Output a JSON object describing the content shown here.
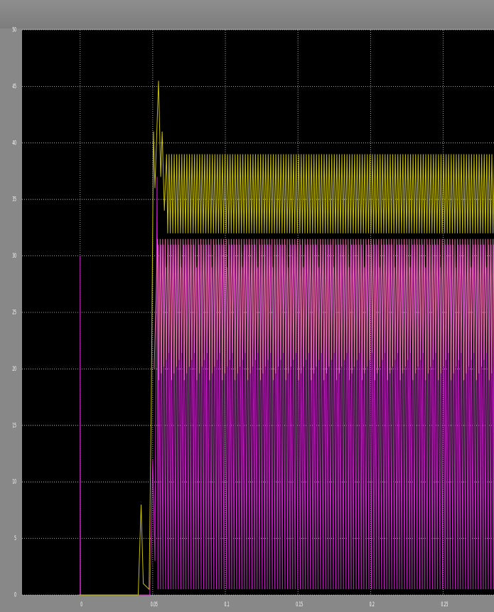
{
  "chart_data": {
    "type": "line",
    "title": "",
    "xlabel": "",
    "ylabel": "",
    "xlim": [
      -0.04,
      0.285
    ],
    "ylim": [
      0,
      50
    ],
    "x_ticks": [
      0,
      0.05,
      0.1,
      0.15,
      0.2,
      0.25
    ],
    "x_tick_labels": [
      "0",
      "0.05",
      "0.1",
      "0.15",
      "0.2",
      "0.25"
    ],
    "y_ticks": [
      0,
      5,
      10,
      15,
      20,
      25,
      30,
      35,
      40,
      45,
      50
    ],
    "y_tick_labels": [
      "0",
      "5",
      "10",
      "15",
      "20",
      "25",
      "30",
      "35",
      "40",
      "45",
      "50"
    ],
    "grid": true,
    "background": "#000000",
    "series": [
      {
        "color": "#c8c000",
        "description": "startup transient then steady ripple",
        "pre_start_value": 0,
        "bump": {
          "t": 0.042,
          "peak": 8
        },
        "rise_end_t": 0.05,
        "peak_value": 45.5,
        "peak_t": 0.054,
        "ripple_max": 39,
        "ripple_min": 32,
        "ripple_period": 0.00175
      },
      {
        "color": "#e070a0",
        "ripple_max": 31.5,
        "ripple_min": 19
      },
      {
        "color": "#cc22cc",
        "pre_start_value": 0,
        "initial_spike": {
          "t": 0,
          "value": 30
        },
        "ripple_max": 31,
        "ripple_min": 0.5
      }
    ]
  }
}
